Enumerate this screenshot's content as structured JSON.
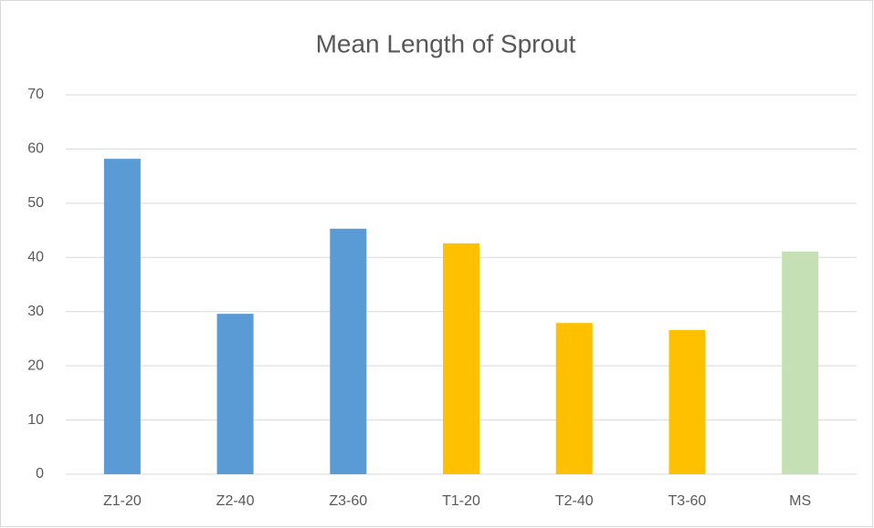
{
  "chart_data": {
    "type": "bar",
    "title": "Mean Length of Sprout",
    "categories": [
      "Z1-20",
      "Z2-40",
      "Z3-60",
      "T1-20",
      "T2-40",
      "T3-60",
      "MS"
    ],
    "values": [
      58.2,
      29.6,
      45.3,
      42.6,
      27.9,
      26.6,
      41.1
    ],
    "colors": [
      "#5b9bd5",
      "#5b9bd5",
      "#5b9bd5",
      "#ffc000",
      "#ffc000",
      "#ffc000",
      "#c5e0b4"
    ],
    "ylim": [
      0,
      70
    ],
    "yticks": [
      0,
      10,
      20,
      30,
      40,
      50,
      60,
      70
    ],
    "grid": true
  }
}
